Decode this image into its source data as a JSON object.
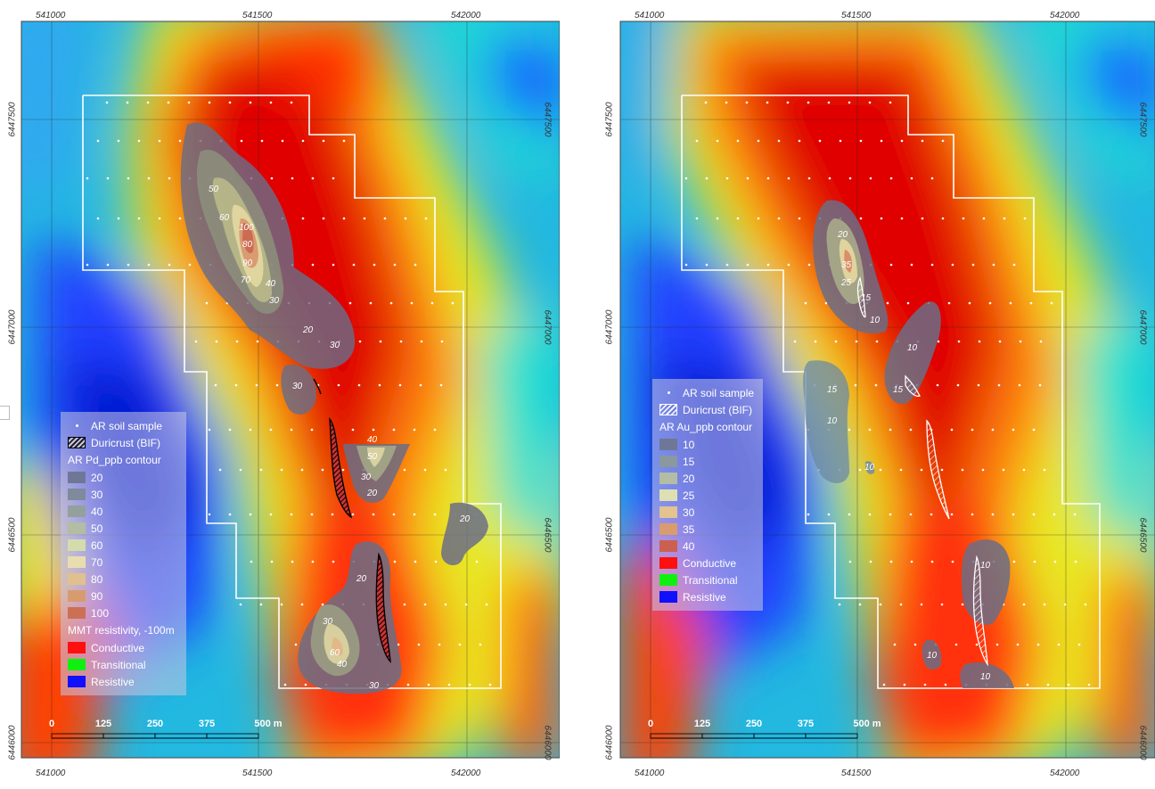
{
  "axes": {
    "x_ticks": [
      "541000",
      "541500",
      "542000"
    ],
    "y_ticks": [
      "6447500",
      "6447000",
      "6446500",
      "6446000"
    ]
  },
  "left_map": {
    "legend": {
      "soil_sample": "AR soil sample",
      "duricrust": "Duricrust (BIF)",
      "contour_title": "AR Pd_ppb contour",
      "contours": [
        {
          "label": "20",
          "color": "#6e7896"
        },
        {
          "label": "30",
          "color": "#7f8a9c"
        },
        {
          "label": "40",
          "color": "#93a09e"
        },
        {
          "label": "50",
          "color": "#b2bda3"
        },
        {
          "label": "60",
          "color": "#d4dcae"
        },
        {
          "label": "70",
          "color": "#e8ddb0"
        },
        {
          "label": "80",
          "color": "#e0c08e"
        },
        {
          "label": "90",
          "color": "#d79b6f"
        },
        {
          "label": "100",
          "color": "#cc7055"
        }
      ],
      "resistivity_title": "MMT resistivity, -100m",
      "classes": [
        {
          "label": "Conductive",
          "color": "#ff1010"
        },
        {
          "label": "Transitional",
          "color": "#10f010"
        },
        {
          "label": "Resistive",
          "color": "#1010ff"
        }
      ]
    },
    "contour_labels": [
      "50",
      "60",
      "100",
      "80",
      "90",
      "70",
      "40",
      "30",
      "20",
      "30",
      "30",
      "40",
      "50",
      "30",
      "20",
      "20",
      "20",
      "30",
      "60",
      "40",
      "30"
    ]
  },
  "right_map": {
    "legend": {
      "soil_sample": "AR soil sample",
      "duricrust": "Duricrust (BIF)",
      "contour_title": "AR Au_ppb contour",
      "contours": [
        {
          "label": "10",
          "color": "#6e7896"
        },
        {
          "label": "15",
          "color": "#8b989f"
        },
        {
          "label": "20",
          "color": "#b2bda3"
        },
        {
          "label": "25",
          "color": "#dfe0b2"
        },
        {
          "label": "30",
          "color": "#e3c38f"
        },
        {
          "label": "35",
          "color": "#da9b70"
        },
        {
          "label": "40",
          "color": "#cc6050"
        }
      ],
      "classes": [
        {
          "label": "Conductive",
          "color": "#ff1010"
        },
        {
          "label": "Transitional",
          "color": "#10f010"
        },
        {
          "label": "Resistive",
          "color": "#1010ff"
        }
      ]
    },
    "contour_labels": [
      "20",
      "35",
      "25",
      "15",
      "10",
      "10",
      "15",
      "15",
      "10",
      "10",
      "10",
      "10",
      "10"
    ]
  },
  "scale_bar": {
    "labels": [
      "0",
      "125",
      "250",
      "375",
      "500 m"
    ]
  }
}
